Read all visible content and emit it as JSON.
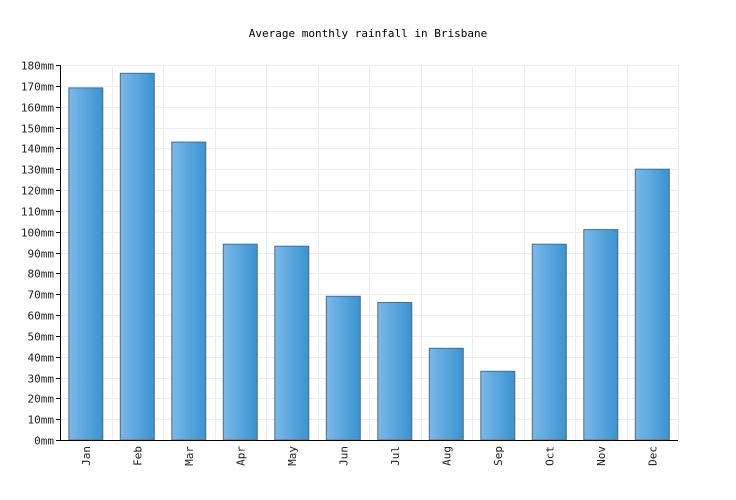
{
  "chart_data": {
    "type": "bar",
    "title": "Average monthly rainfall in Brisbane",
    "xlabel": "",
    "ylabel": "",
    "categories": [
      "Jan",
      "Feb",
      "Mar",
      "Apr",
      "May",
      "Jun",
      "Jul",
      "Aug",
      "Sep",
      "Oct",
      "Nov",
      "Dec"
    ],
    "values": [
      169,
      176,
      143,
      94,
      93,
      69,
      66,
      44,
      33,
      94,
      101,
      130
    ],
    "ylim": [
      0,
      180
    ],
    "yticks": [
      "0mm",
      "10mm",
      "20mm",
      "30mm",
      "40mm",
      "50mm",
      "60mm",
      "70mm",
      "80mm",
      "90mm",
      "100mm",
      "110mm",
      "120mm",
      "130mm",
      "140mm",
      "150mm",
      "160mm",
      "170mm",
      "180mm"
    ],
    "ytick_step": 10,
    "grid": true,
    "legend": "none",
    "colors": {
      "bar_light": "#7ab8ea",
      "bar_dark": "#3a93d0",
      "bar_stroke": "#5a6a7a",
      "grid": "#ececf0",
      "axis": "#000000"
    }
  }
}
